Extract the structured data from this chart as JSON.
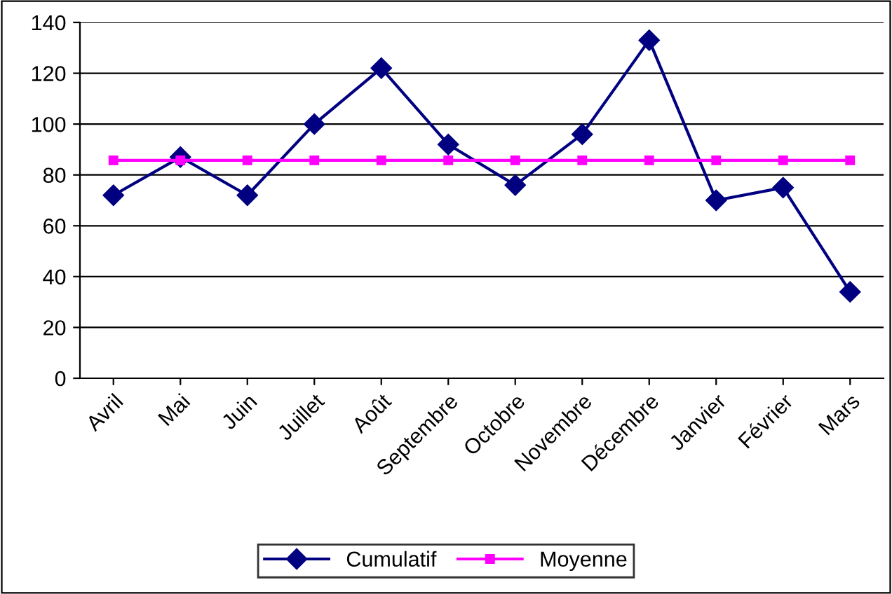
{
  "chart_data": {
    "type": "line",
    "categories": [
      "Avril",
      "Mai",
      "Juin",
      "Juillet",
      "Août",
      "Septembre",
      "Octobre",
      "Novembre",
      "Décembre",
      "Janvier",
      "Février",
      "Mars"
    ],
    "series": [
      {
        "name": "Cumulatif",
        "color": "#000080",
        "marker": "diamond",
        "values": [
          72,
          87,
          72,
          100,
          122,
          92,
          76,
          96,
          133,
          70,
          75,
          34
        ]
      },
      {
        "name": "Moyenne",
        "color": "#ff00ff",
        "marker": "square",
        "values": [
          85.75,
          85.75,
          85.75,
          85.75,
          85.75,
          85.75,
          85.75,
          85.75,
          85.75,
          85.75,
          85.75,
          85.75
        ]
      }
    ],
    "ylim": [
      0,
      140
    ],
    "yticks": [
      0,
      20,
      40,
      60,
      80,
      100,
      120,
      140
    ],
    "grid": "y",
    "legend": "bottom",
    "line_style": "solid"
  }
}
